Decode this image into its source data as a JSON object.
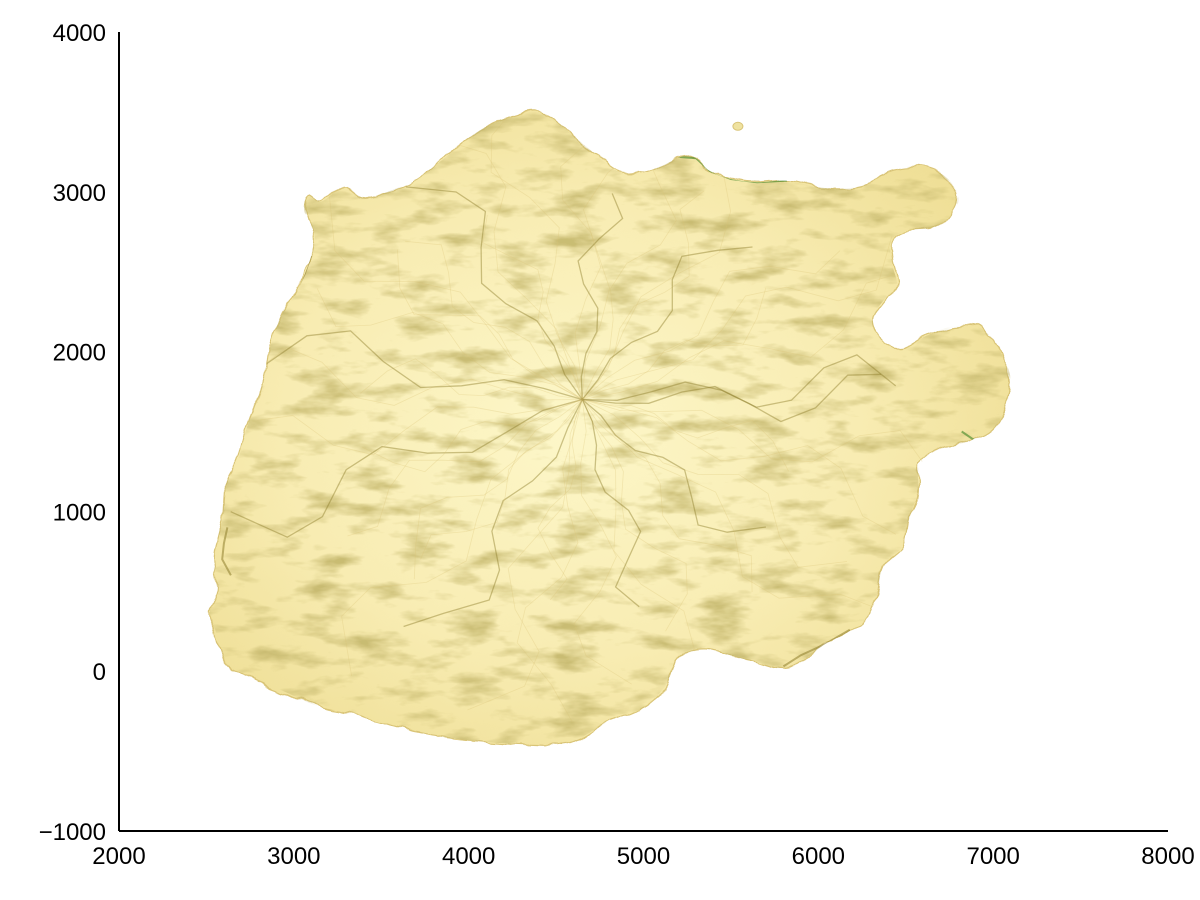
{
  "chart_data": {
    "type": "heatmap",
    "title": "",
    "xlabel": "",
    "ylabel": "",
    "xlim": [
      2000,
      8000
    ],
    "ylim": [
      -1000,
      4000
    ],
    "x_ticks": [
      {
        "value": 2000,
        "label": "2000"
      },
      {
        "value": 3000,
        "label": "3000"
      },
      {
        "value": 4000,
        "label": "4000"
      },
      {
        "value": 5000,
        "label": "5000"
      },
      {
        "value": 6000,
        "label": "6000"
      },
      {
        "value": 7000,
        "label": "7000"
      },
      {
        "value": 8000,
        "label": "8000"
      }
    ],
    "y_ticks": [
      {
        "value": -1000,
        "label": "−1000"
      },
      {
        "value": 0,
        "label": "0"
      },
      {
        "value": 1000,
        "label": "1000"
      },
      {
        "value": 2000,
        "label": "2000"
      },
      {
        "value": 3000,
        "label": "3000"
      },
      {
        "value": 4000,
        "label": "4000"
      }
    ],
    "grid": false,
    "colormap": [
      "#fdf6c4",
      "#efe2a0",
      "#d9c477",
      "#8e7e2c",
      "#2e7d1b"
    ],
    "outline": [
      [
        2550,
        260
      ],
      [
        2520,
        380
      ],
      [
        2560,
        520
      ],
      [
        2540,
        700
      ],
      [
        2590,
        950
      ],
      [
        2610,
        1160
      ],
      [
        2680,
        1320
      ],
      [
        2730,
        1520
      ],
      [
        2820,
        1800
      ],
      [
        2870,
        2050
      ],
      [
        2940,
        2250
      ],
      [
        3030,
        2400
      ],
      [
        3120,
        2700
      ],
      [
        3060,
        2880
      ],
      [
        3080,
        2980
      ],
      [
        3160,
        2940
      ],
      [
        3270,
        3030
      ],
      [
        3330,
        3000
      ],
      [
        3420,
        2960
      ],
      [
        3560,
        3010
      ],
      [
        3700,
        3080
      ],
      [
        3850,
        3200
      ],
      [
        3990,
        3330
      ],
      [
        4140,
        3430
      ],
      [
        4280,
        3480
      ],
      [
        4380,
        3500
      ],
      [
        4480,
        3460
      ],
      [
        4590,
        3360
      ],
      [
        4720,
        3240
      ],
      [
        4850,
        3130
      ],
      [
        4980,
        3120
      ],
      [
        5100,
        3160
      ],
      [
        5220,
        3220
      ],
      [
        5300,
        3210
      ],
      [
        5380,
        3130
      ],
      [
        5500,
        3080
      ],
      [
        5650,
        3060
      ],
      [
        5820,
        3070
      ],
      [
        5990,
        3030
      ],
      [
        6150,
        3020
      ],
      [
        6310,
        3060
      ],
      [
        6420,
        3140
      ],
      [
        6580,
        3160
      ],
      [
        6720,
        3100
      ],
      [
        6800,
        2980
      ],
      [
        6770,
        2860
      ],
      [
        6660,
        2780
      ],
      [
        6520,
        2760
      ],
      [
        6420,
        2700
      ],
      [
        6420,
        2560
      ],
      [
        6450,
        2410
      ],
      [
        6380,
        2330
      ],
      [
        6310,
        2200
      ],
      [
        6370,
        2060
      ],
      [
        6480,
        2020
      ],
      [
        6620,
        2100
      ],
      [
        6780,
        2160
      ],
      [
        6940,
        2140
      ],
      [
        7060,
        1960
      ],
      [
        7100,
        1780
      ],
      [
        7020,
        1540
      ],
      [
        6860,
        1440
      ],
      [
        6700,
        1390
      ],
      [
        6580,
        1290
      ],
      [
        6570,
        1120
      ],
      [
        6520,
        960
      ],
      [
        6480,
        780
      ],
      [
        6370,
        660
      ],
      [
        6330,
        450
      ],
      [
        6240,
        290
      ],
      [
        6040,
        170
      ],
      [
        5830,
        20
      ],
      [
        5600,
        70
      ],
      [
        5360,
        130
      ],
      [
        5200,
        80
      ],
      [
        5120,
        -100
      ],
      [
        4980,
        -240
      ],
      [
        4780,
        -330
      ],
      [
        4570,
        -450
      ],
      [
        4330,
        -460
      ],
      [
        4080,
        -440
      ],
      [
        3840,
        -410
      ],
      [
        3620,
        -360
      ],
      [
        3380,
        -290
      ],
      [
        3140,
        -220
      ],
      [
        2930,
        -120
      ],
      [
        2750,
        -40
      ],
      [
        2610,
        70
      ]
    ],
    "islets": [
      {
        "x": 5540,
        "y": 3410
      }
    ]
  }
}
